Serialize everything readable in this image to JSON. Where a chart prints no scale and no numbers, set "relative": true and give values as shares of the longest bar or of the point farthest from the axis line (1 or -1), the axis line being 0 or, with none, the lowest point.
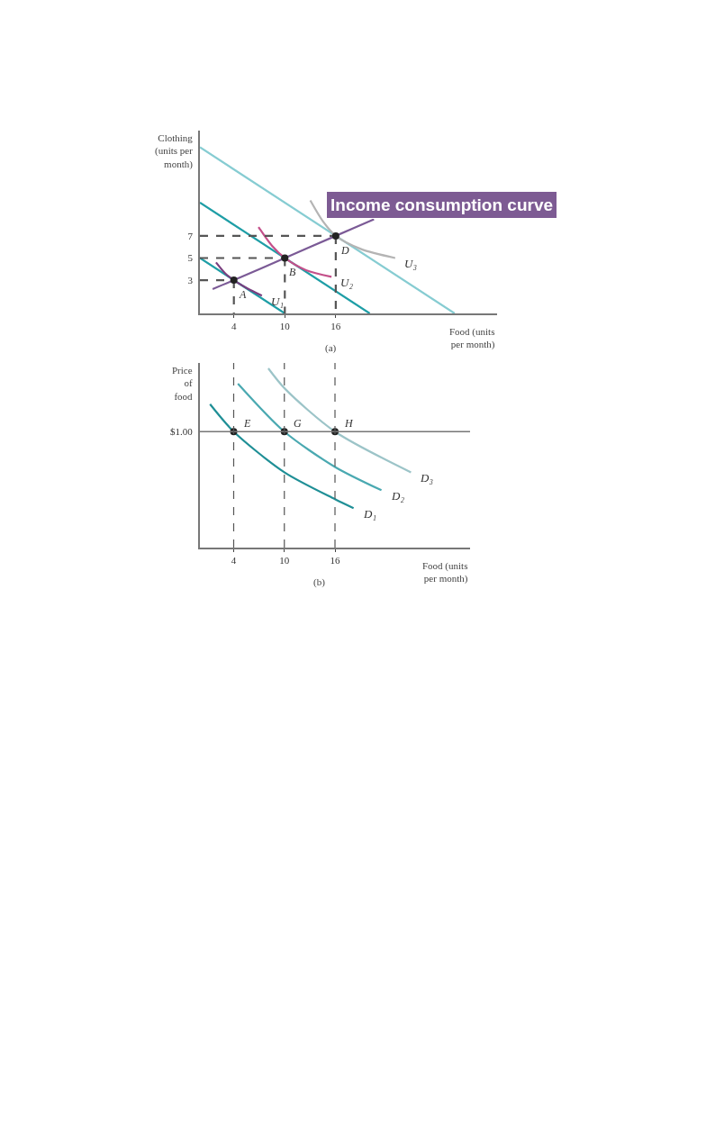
{
  "chart_data": [
    {
      "type": "line",
      "title": "Income consumption curve",
      "xlabel": "Food (units\nper month)",
      "ylabel": "Clothing\n(units per\nmonth)",
      "xlim": [
        0,
        35
      ],
      "xticks": [
        4,
        10,
        16
      ],
      "ylim": [
        0,
        16.5
      ],
      "yticks": [
        3,
        5,
        7
      ],
      "annotations": [
        "(a)",
        {
          "text": "A",
          "x": 4,
          "y": 3
        },
        {
          "text": "B",
          "x": 10,
          "y": 5
        },
        {
          "text": "D",
          "x": 16,
          "y": 7
        }
      ],
      "series": [
        {
          "color": "#1e9ea6",
          "x": [
            0,
            10
          ],
          "values": [
            5,
            0
          ]
        },
        {
          "color": "#1e9ea6",
          "x": [
            0,
            20
          ],
          "values": [
            10,
            0
          ]
        },
        {
          "color": "#86ccd2",
          "x": [
            0,
            30
          ],
          "values": [
            15,
            0
          ]
        },
        {
          "color": "#7b5a96",
          "x": [
            1.5,
            4,
            10,
            16,
            20.5
          ],
          "values": [
            2.2,
            3,
            5,
            7,
            8.5
          ]
        },
        {
          "name": "U₁",
          "color": "#7a3f7f",
          "x": [
            1.9,
            3,
            4,
            5.5,
            7.3
          ],
          "values": [
            4.6,
            3.6,
            3,
            2.3,
            1.6
          ]
        },
        {
          "name": "U₂",
          "color": "#c4508a",
          "x": [
            6.9,
            8.5,
            10,
            12.5,
            15.5
          ],
          "values": [
            7.8,
            6.1,
            5,
            3.9,
            3.3
          ]
        },
        {
          "name": "U₃",
          "color": "#b4b4b4",
          "x": [
            13,
            14.5,
            16,
            19,
            23
          ],
          "values": [
            10.2,
            8.3,
            7,
            5.8,
            5.0
          ]
        },
        {
          "color": "#555555",
          "line_style": "dashed",
          "x": [
            0,
            4
          ],
          "values": [
            3,
            3
          ]
        },
        {
          "color": "#555555",
          "line_style": "dashed",
          "x": [
            4,
            4
          ],
          "values": [
            3,
            0
          ]
        },
        {
          "color": "#555555",
          "line_style": "dashed",
          "x": [
            0,
            10
          ],
          "values": [
            5,
            5
          ]
        },
        {
          "color": "#555555",
          "line_style": "dashed",
          "x": [
            10,
            10
          ],
          "values": [
            5,
            0
          ]
        },
        {
          "color": "#555555",
          "line_style": "dashed",
          "x": [
            0,
            16
          ],
          "values": [
            7,
            7
          ]
        },
        {
          "color": "#555555",
          "line_style": "dashed",
          "x": [
            16,
            16
          ],
          "values": [
            7,
            0
          ]
        },
        {
          "type": "scatter",
          "marker": "circle",
          "color": "#222222",
          "x": [
            4,
            10,
            16
          ],
          "values": [
            3,
            5,
            7
          ]
        }
      ]
    },
    {
      "type": "line",
      "relative": true,
      "xlabel": "Food (units\nper month)",
      "ylabel": "Price\nof\nfood",
      "xlim": [
        0,
        32
      ],
      "xticks": [
        4,
        10,
        16
      ],
      "annotations": [
        "(b)",
        "$1.00",
        {
          "text": "E",
          "x": 4,
          "y": 0.647
        },
        {
          "text": "G",
          "x": 10,
          "y": 0.647
        },
        {
          "text": "H",
          "x": 16,
          "y": 0.647
        }
      ],
      "ref_lines": [
        {
          "axis": "y",
          "value": 0.647,
          "color": "#777777",
          "line_style": "solid"
        },
        {
          "axis": "x",
          "value": 4,
          "color": "#555555",
          "line_style": "dashed"
        },
        {
          "axis": "x",
          "value": 10,
          "color": "#555555",
          "line_style": "dashed"
        },
        {
          "axis": "x",
          "value": 16,
          "color": "#555555",
          "line_style": "dashed"
        }
      ],
      "series": [
        {
          "name": "D₁",
          "color": "#1f8f96",
          "x": [
            1.2,
            4,
            10,
            16,
            18.2
          ],
          "values": [
            0.8,
            0.647,
            0.42,
            0.27,
            0.22
          ]
        },
        {
          "name": "D₂",
          "color": "#4aa9b1",
          "x": [
            4.5,
            10,
            16,
            21.5
          ],
          "values": [
            0.915,
            0.647,
            0.45,
            0.32
          ]
        },
        {
          "name": "D₃",
          "color": "#9cc4c8",
          "x": [
            8.1,
            10.1,
            16,
            25
          ],
          "values": [
            1.0,
            0.885,
            0.647,
            0.42
          ]
        },
        {
          "type": "scatter",
          "marker": "circle",
          "color": "#222222",
          "x": [
            4,
            10,
            16
          ],
          "values": [
            0.647,
            0.647,
            0.647
          ]
        }
      ]
    }
  ]
}
